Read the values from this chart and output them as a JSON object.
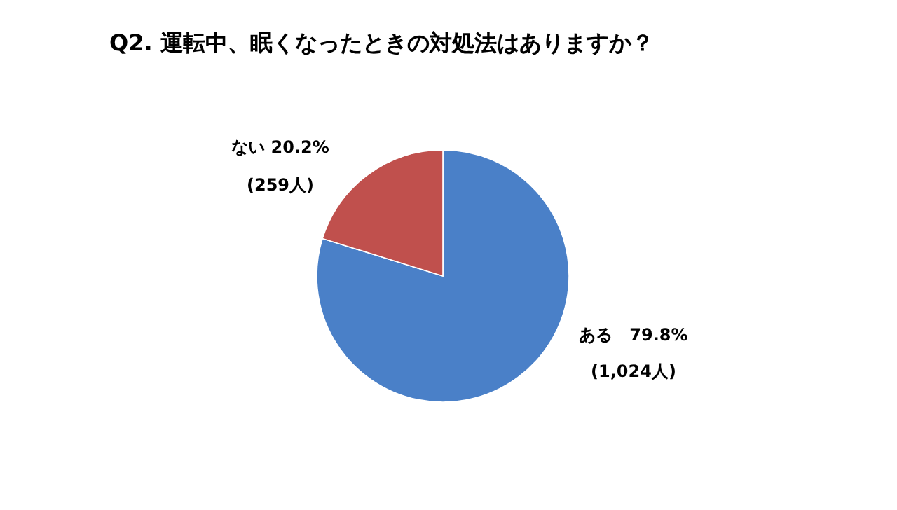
{
  "chart_data": {
    "type": "pie",
    "title": "Q2. 運転中、眠くなったときの対処法はありますか？",
    "categories": [
      "ある",
      "ない"
    ],
    "values": [
      79.8,
      20.2
    ],
    "colors": [
      "#4a80c8",
      "#c0504d"
    ],
    "value_labels": [
      "79.8%",
      "20.2%"
    ],
    "annotations": [
      "(1,024人)",
      "(259人)"
    ]
  }
}
